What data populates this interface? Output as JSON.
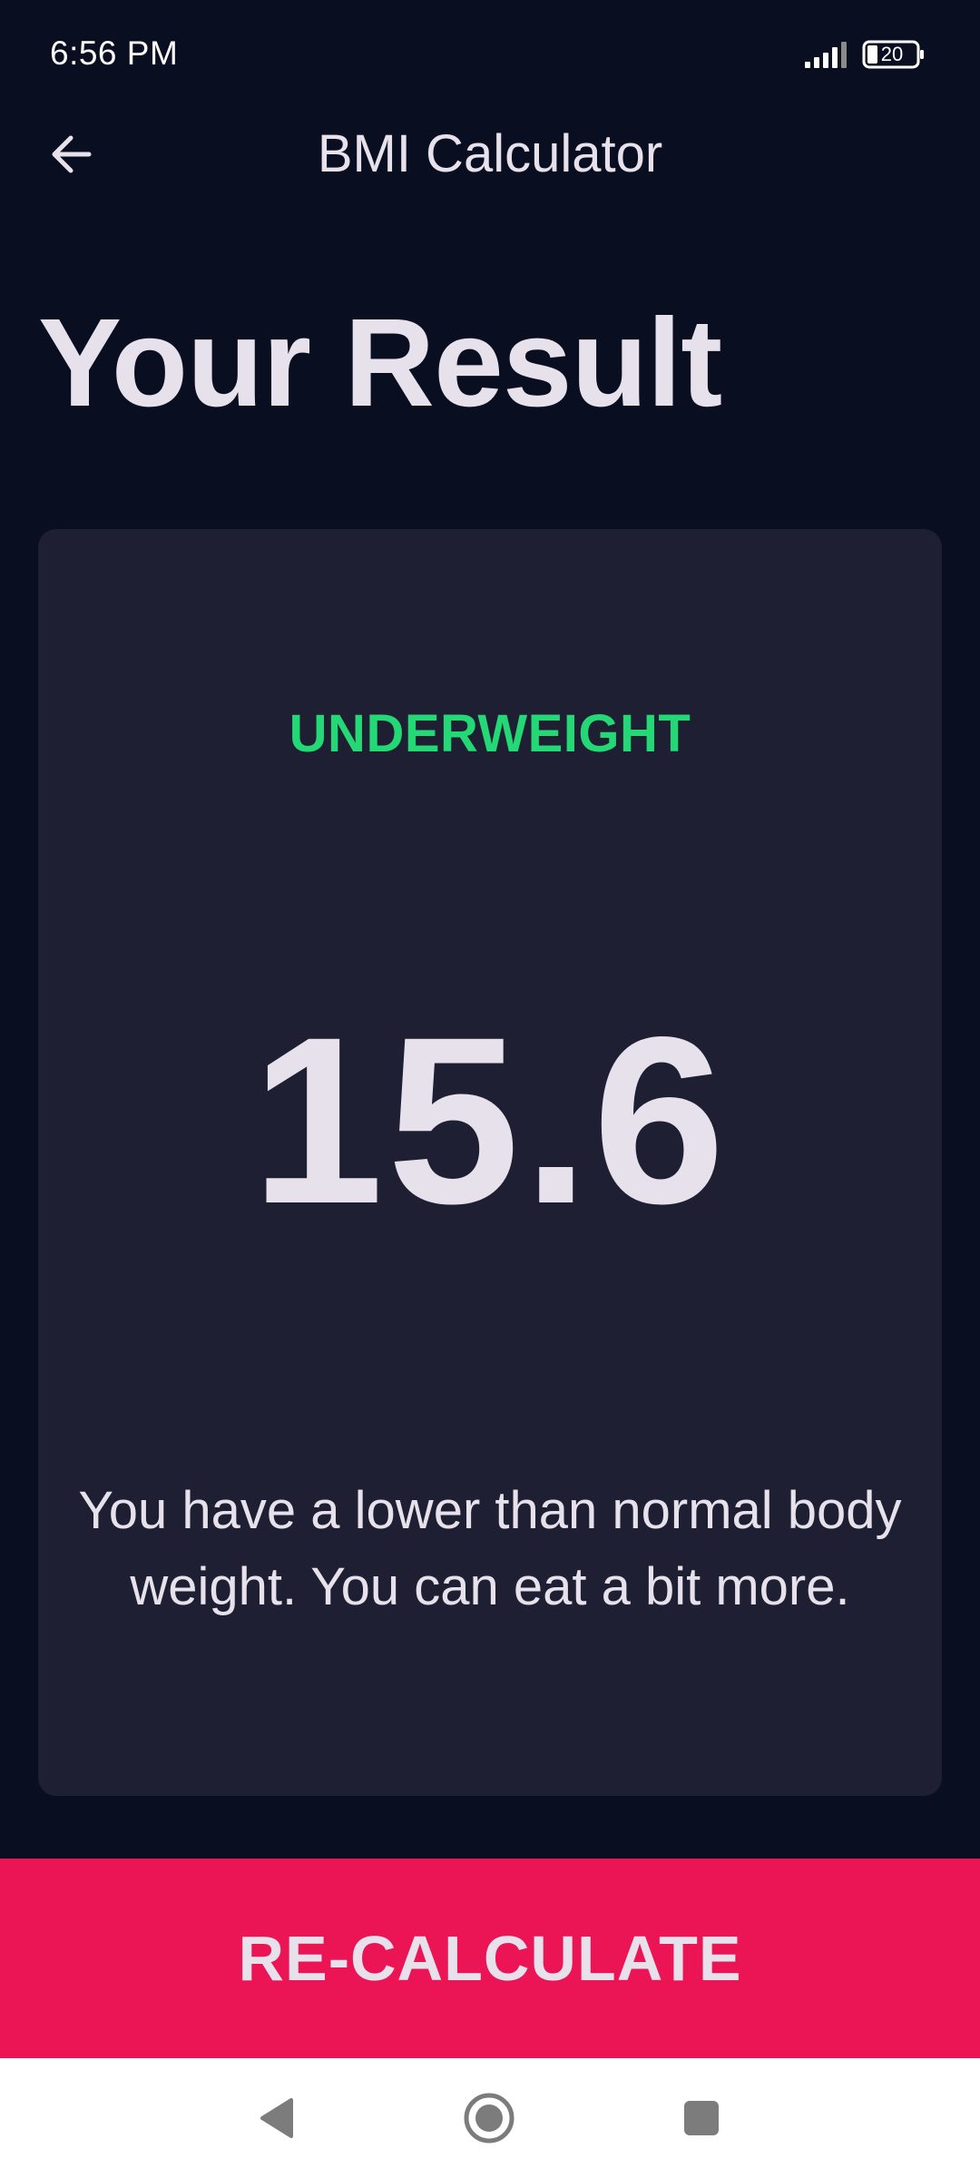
{
  "status_bar": {
    "time": "6:56 PM",
    "battery": "20",
    "icons": [
      "signal-icon",
      "battery-icon"
    ]
  },
  "app_bar": {
    "title": "BMI Calculator",
    "back_icon": "arrow-back-icon"
  },
  "page": {
    "title": "Your Result"
  },
  "result": {
    "category": "UNDERWEIGHT",
    "bmi": "15.6",
    "message": "You have a lower than normal body weight. You can eat a bit more."
  },
  "action": {
    "recalculate_label": "RE-CALCULATE"
  },
  "nav": {
    "icons": [
      "nav-back-icon",
      "nav-home-icon",
      "nav-recents-icon"
    ]
  },
  "colors": {
    "background": "#0a0e21",
    "card": "#1e1f33",
    "category": "#24d876",
    "accent": "#eb1555",
    "text": "#e6e1ea"
  }
}
